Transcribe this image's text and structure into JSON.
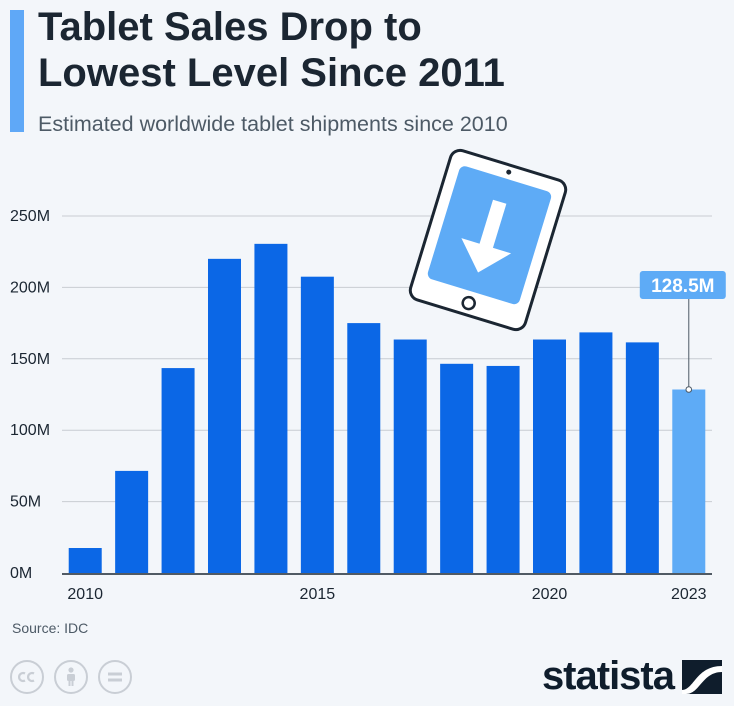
{
  "header": {
    "title_line1": "Tablet Sales Drop to",
    "title_line2": "Lowest Level Since 2011",
    "subtitle": "Estimated worldwide tablet shipments since 2010"
  },
  "chart_data": {
    "type": "bar",
    "title": "Tablet Sales Drop to Lowest Level Since 2011",
    "subtitle": "Estimated worldwide tablet shipments since 2010",
    "categories": [
      "2010",
      "2011",
      "2012",
      "2013",
      "2014",
      "2015",
      "2016",
      "2017",
      "2018",
      "2019",
      "2020",
      "2021",
      "2022",
      "2023"
    ],
    "values": [
      17.5,
      71.5,
      143.5,
      220,
      230.5,
      207.5,
      175,
      163.5,
      146.5,
      145,
      163.5,
      168.5,
      161.5,
      128.5
    ],
    "units": "M",
    "xlabel": "",
    "ylabel": "",
    "ylim": [
      0,
      250
    ],
    "yticks": [
      0,
      50,
      100,
      150,
      200,
      250
    ],
    "ytick_labels": [
      "0M",
      "50M",
      "100M",
      "150M",
      "200M",
      "250M"
    ],
    "xtick_labels": [
      "2010",
      "2015",
      "2020",
      "2023"
    ],
    "highlight_index": 13,
    "annotation": "128.5M",
    "grid": true,
    "colors": {
      "bar": "#0b67e6",
      "highlight": "#5eabf6",
      "grid": "#c8ccd2",
      "axis": "#1b2632"
    }
  },
  "footer": {
    "source": "Source: IDC",
    "brand": "statista",
    "cc_icons": [
      "cc-icon",
      "by-person-icon",
      "nd-equals-icon"
    ]
  }
}
